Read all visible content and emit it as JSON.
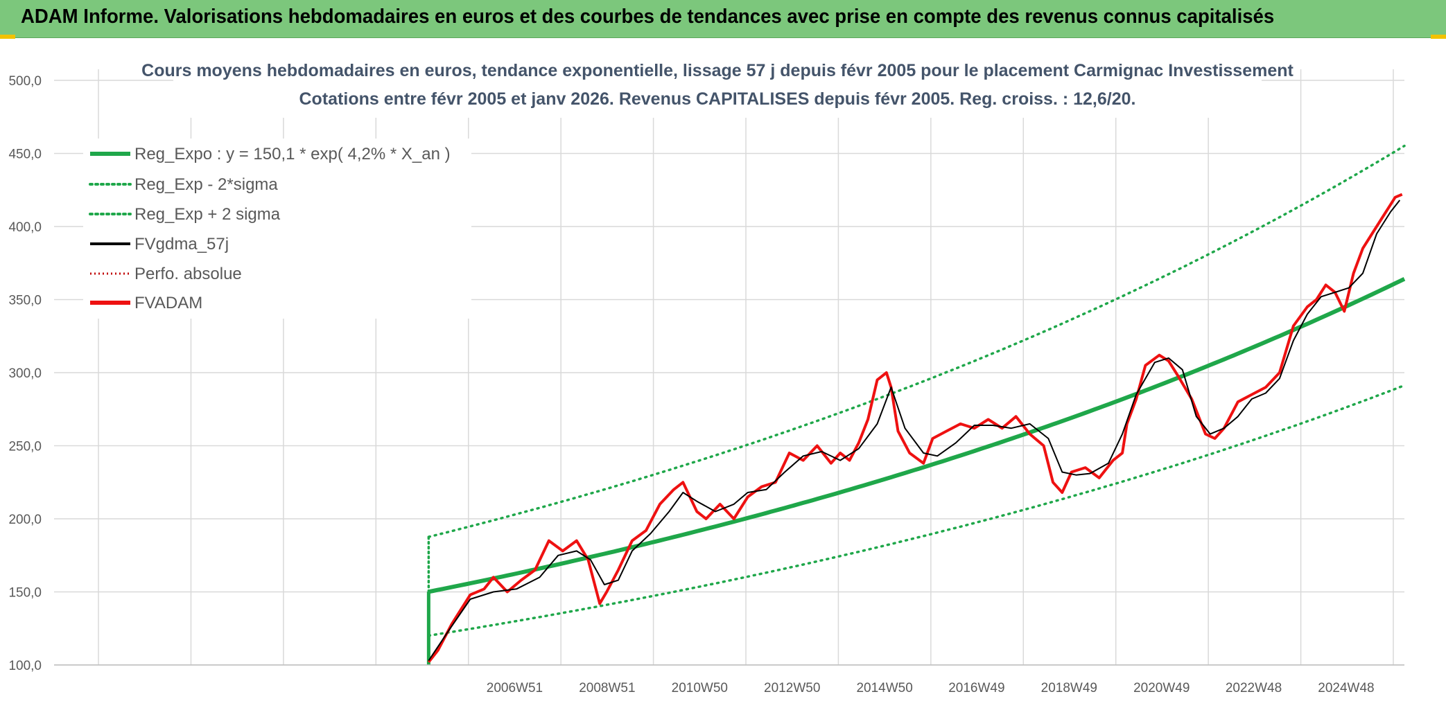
{
  "banner": {
    "title": "ADAM Informe. Valorisations hebdomadaires en euros et des courbes de tendances avec prise en compte des revenus connus capitalisés"
  },
  "colors": {
    "banner_bg": "#7cc77c",
    "reg_green": "#1fa74a",
    "fvadam_red": "#ee1111",
    "fvgdma_black": "#000000",
    "perfo_red": "#c00000",
    "grid": "#d9d9d9"
  },
  "chart_data": {
    "type": "line",
    "title": [
      "Cours moyens hebdomadaires en euros, tendance exponentielle, lissage 57 j depuis févr 2005 pour le placement Carmignac Investissement",
      "Cotations entre févr 2005 et janv 2026. Revenus CAPITALISES depuis févr 2005. Reg. croiss. : 12,6/20."
    ],
    "xlabel": "",
    "ylabel": "",
    "ylim": [
      100,
      500
    ],
    "ytick_labels": [
      "100,0",
      "150,0",
      "200,0",
      "250,0",
      "300,0",
      "350,0",
      "400,0",
      "450,0",
      "500,0"
    ],
    "xtick_labels": [
      "2006W51",
      "2008W51",
      "2010W50",
      "2012W50",
      "2014W50",
      "2016W49",
      "2018W49",
      "2020W49",
      "2022W48",
      "2024W48"
    ],
    "xtick_years": [
      2006.96,
      2008.96,
      2010.96,
      2012.96,
      2014.96,
      2016.95,
      2018.95,
      2020.95,
      2022.94,
      2024.94
    ],
    "x_range_years": [
      1997.0,
      2026.2
    ],
    "data_start_year": 2005.1,
    "grid": true,
    "legend_position": "top-left",
    "regression": {
      "a": 150.1,
      "rate": 0.042,
      "sigma_factor_low": 0.8,
      "sigma_factor_high": 1.25
    },
    "series": [
      {
        "name": "Reg_Expo : y = 150,1 * exp( 4,2% *  X_an )",
        "style": "solid-thick",
        "color": "#1fa74a"
      },
      {
        "name": "Reg_Exp - 2*sigma",
        "style": "dotted",
        "color": "#1fa74a"
      },
      {
        "name": "Reg_Exp + 2 sigma",
        "style": "dotted",
        "color": "#1fa74a"
      },
      {
        "name": "FVgdma_57j",
        "style": "solid-thin",
        "color": "#000000",
        "x": [
          2005.1,
          2005.5,
          2006.0,
          2006.5,
          2007.0,
          2007.5,
          2007.9,
          2008.3,
          2008.6,
          2008.9,
          2009.2,
          2009.5,
          2009.9,
          2010.3,
          2010.6,
          2010.9,
          2011.3,
          2011.7,
          2012.0,
          2012.4,
          2012.8,
          2013.2,
          2013.6,
          2014.0,
          2014.4,
          2014.8,
          2015.1,
          2015.4,
          2015.8,
          2016.1,
          2016.5,
          2016.9,
          2017.3,
          2017.7,
          2018.1,
          2018.5,
          2018.8,
          2019.1,
          2019.4,
          2019.8,
          2020.1,
          2020.4,
          2020.8,
          2021.1,
          2021.4,
          2021.7,
          2022.0,
          2022.3,
          2022.6,
          2022.9,
          2023.2,
          2023.5,
          2023.8,
          2024.1,
          2024.4,
          2024.7,
          2025.0,
          2025.3,
          2025.6,
          2025.9,
          2026.1
        ],
        "y": [
          103,
          122,
          145,
          150,
          152,
          160,
          175,
          178,
          172,
          155,
          158,
          178,
          190,
          205,
          218,
          212,
          205,
          210,
          218,
          220,
          232,
          243,
          246,
          240,
          248,
          265,
          290,
          262,
          245,
          243,
          252,
          264,
          264,
          262,
          265,
          255,
          232,
          230,
          231,
          238,
          258,
          285,
          307,
          310,
          302,
          270,
          258,
          262,
          270,
          282,
          286,
          296,
          322,
          340,
          352,
          355,
          358,
          368,
          395,
          410,
          418
        ]
      },
      {
        "name": "Perfo. absolue",
        "style": "dotted",
        "color": "#c00000"
      },
      {
        "name": "FVADAM",
        "style": "solid-thick",
        "color": "#ee1111",
        "x": [
          2005.1,
          2005.3,
          2005.6,
          2006.0,
          2006.3,
          2006.5,
          2006.8,
          2007.1,
          2007.4,
          2007.7,
          2008.0,
          2008.3,
          2008.55,
          2008.8,
          2008.95,
          2009.2,
          2009.5,
          2009.8,
          2010.1,
          2010.4,
          2010.6,
          2010.9,
          2011.1,
          2011.4,
          2011.7,
          2012.0,
          2012.3,
          2012.6,
          2012.9,
          2013.2,
          2013.5,
          2013.8,
          2014.0,
          2014.2,
          2014.4,
          2014.6,
          2014.8,
          2015.0,
          2015.1,
          2015.25,
          2015.5,
          2015.8,
          2016.0,
          2016.3,
          2016.6,
          2016.9,
          2017.2,
          2017.5,
          2017.8,
          2018.1,
          2018.4,
          2018.6,
          2018.8,
          2019.0,
          2019.3,
          2019.6,
          2019.9,
          2020.1,
          2020.2,
          2020.4,
          2020.6,
          2020.9,
          2021.1,
          2021.3,
          2021.6,
          2021.9,
          2022.1,
          2022.3,
          2022.6,
          2022.9,
          2023.2,
          2023.5,
          2023.8,
          2024.1,
          2024.3,
          2024.5,
          2024.7,
          2024.9,
          2025.1,
          2025.3,
          2025.5,
          2025.7,
          2025.9,
          2026.0,
          2026.15
        ],
        "y": [
          102,
          110,
          128,
          148,
          152,
          160,
          150,
          158,
          165,
          185,
          178,
          185,
          172,
          142,
          150,
          165,
          185,
          192,
          210,
          220,
          225,
          205,
          200,
          210,
          200,
          215,
          222,
          225,
          245,
          240,
          250,
          238,
          245,
          240,
          252,
          268,
          295,
          300,
          290,
          260,
          245,
          238,
          255,
          260,
          265,
          262,
          268,
          262,
          270,
          258,
          250,
          225,
          218,
          232,
          235,
          228,
          240,
          245,
          265,
          282,
          305,
          312,
          308,
          298,
          282,
          258,
          255,
          262,
          280,
          285,
          290,
          300,
          332,
          345,
          350,
          360,
          355,
          342,
          368,
          385,
          395,
          405,
          415,
          420,
          422
        ]
      }
    ]
  }
}
